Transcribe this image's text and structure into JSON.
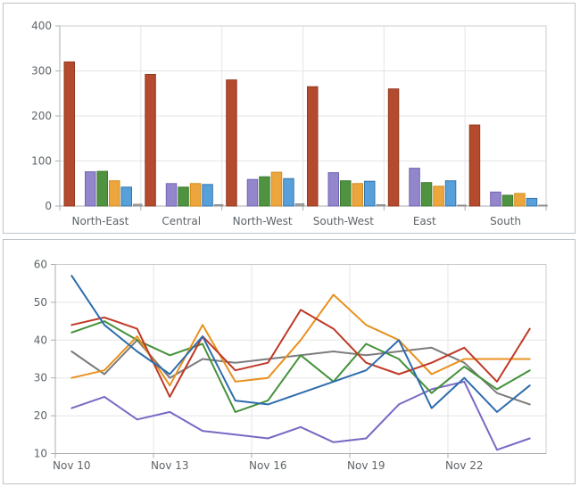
{
  "page": {
    "background": "#ffffff",
    "panel_border": "#bfc4c8"
  },
  "axes_style": {
    "grid_color": "#e4e5e6",
    "axis_color": "#aaadb0",
    "plot_border_color": "#c9cccf",
    "label_color": "#5e6468"
  },
  "chart_data": [
    {
      "type": "bar",
      "title": "",
      "xlabel": "",
      "ylabel": "",
      "categories": [
        "North-East",
        "Central",
        "North-West",
        "South-West",
        "East",
        "South"
      ],
      "ylim": [
        0,
        400
      ],
      "yticks": [
        0,
        100,
        200,
        300,
        400
      ],
      "grid": true,
      "legend": "none",
      "series": [
        {
          "name": "brick",
          "color": "#b44a2e",
          "border": "#93391f",
          "values": [
            320,
            292,
            280,
            265,
            260,
            180
          ]
        },
        {
          "name": "purple",
          "color": "#9486cb",
          "border": "#7263b4",
          "values": [
            76,
            50,
            59,
            74,
            84,
            31
          ]
        },
        {
          "name": "green",
          "color": "#4f9340",
          "border": "#3c7a2e",
          "values": [
            77,
            42,
            65,
            56,
            52,
            24
          ]
        },
        {
          "name": "orange",
          "color": "#eda63d",
          "border": "#d18b1f",
          "values": [
            56,
            50,
            75,
            50,
            44,
            28
          ]
        },
        {
          "name": "blue",
          "color": "#57a0d9",
          "border": "#3376ad",
          "values": [
            42,
            48,
            61,
            55,
            56,
            17
          ]
        },
        {
          "name": "gray",
          "color": "#a5a5a5",
          "border": "#8c8c8c",
          "values": [
            4,
            3,
            5,
            3,
            2,
            2
          ]
        }
      ]
    },
    {
      "type": "line",
      "title": "",
      "xlabel": "",
      "ylabel": "",
      "x": [
        "Nov 10",
        "Nov 11",
        "Nov 12",
        "Nov 13",
        "Nov 14",
        "Nov 15",
        "Nov 16",
        "Nov 17",
        "Nov 18",
        "Nov 19",
        "Nov 20",
        "Nov 21",
        "Nov 22",
        "Nov 23",
        "Nov 24"
      ],
      "xtick_labels": [
        "Nov 10",
        "Nov 13",
        "Nov 16",
        "Nov 19",
        "Nov 22"
      ],
      "xtick_every": 3,
      "ylim": [
        10,
        60
      ],
      "yticks": [
        10,
        20,
        30,
        40,
        50,
        60
      ],
      "grid": true,
      "legend": "none",
      "series": [
        {
          "name": "gray",
          "color": "#7c7c7c",
          "values": [
            37,
            31,
            40,
            30,
            35,
            34,
            35,
            36,
            37,
            36,
            37,
            38,
            34,
            26,
            23
          ]
        },
        {
          "name": "purple",
          "color": "#7a68c4",
          "values": [
            22,
            25,
            19,
            21,
            16,
            15,
            14,
            17,
            13,
            14,
            23,
            27,
            29,
            11,
            14
          ]
        },
        {
          "name": "green",
          "color": "#44913a",
          "values": [
            42,
            45,
            40,
            36,
            39,
            21,
            24,
            36,
            29,
            39,
            35,
            26,
            33,
            27,
            32
          ]
        },
        {
          "name": "orange",
          "color": "#e8911f",
          "values": [
            30,
            32,
            41,
            28,
            44,
            29,
            30,
            40,
            52,
            44,
            40,
            31,
            35,
            35,
            35
          ]
        },
        {
          "name": "red",
          "color": "#bf3927",
          "values": [
            44,
            46,
            43,
            25,
            41,
            32,
            34,
            48,
            43,
            34,
            31,
            34,
            38,
            29,
            43
          ]
        },
        {
          "name": "blue",
          "color": "#2e6cac",
          "values": [
            57,
            44,
            37,
            31,
            41,
            24,
            23,
            26,
            29,
            32,
            40,
            22,
            30,
            21,
            28
          ]
        }
      ]
    }
  ]
}
